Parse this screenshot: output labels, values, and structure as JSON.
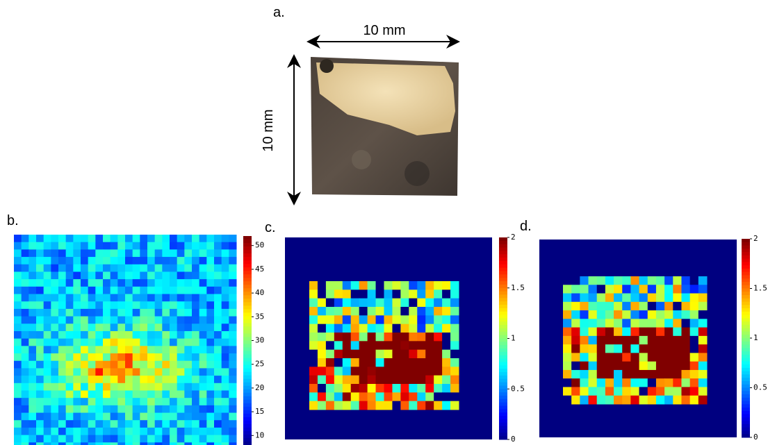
{
  "figure": {
    "panel_a": {
      "label": "a.",
      "width_label": "10 mm",
      "height_label": "10 mm"
    },
    "panel_b": {
      "label": "b.",
      "colorbar": {
        "lim": [
          8,
          52
        ],
        "ticks": [
          10,
          15,
          20,
          25,
          30,
          35,
          40,
          45,
          50
        ]
      }
    },
    "panel_c": {
      "label": "c.",
      "colorbar": {
        "lim": [
          0,
          2
        ],
        "ticks": [
          0,
          0.5,
          1,
          1.5,
          2
        ]
      }
    },
    "panel_d": {
      "label": "d.",
      "colorbar": {
        "lim": [
          0,
          2
        ],
        "ticks": [
          0,
          0.5,
          1,
          1.5,
          2
        ]
      }
    }
  }
}
